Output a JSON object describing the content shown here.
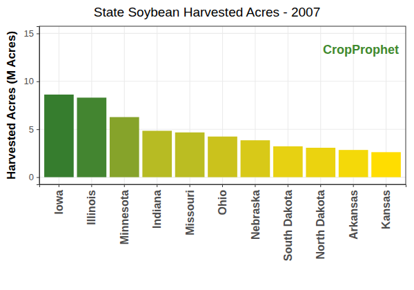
{
  "chart_data": {
    "type": "bar",
    "title": "State Soybean Harvested Acres - 2007",
    "y_label": "Harvested Acres (M Acres)",
    "annotations": [
      "CropProphet"
    ],
    "categories": [
      "Iowa",
      "Illinois",
      "Minnesota",
      "Indiana",
      "Missouri",
      "Ohio",
      "Nebraska",
      "South Dakota",
      "North Dakota",
      "Arkansas",
      "Kansas"
    ],
    "values": [
      8.62,
      8.3,
      6.27,
      4.84,
      4.67,
      4.24,
      3.85,
      3.22,
      3.07,
      2.84,
      2.61
    ],
    "colors": [
      "#367d2e",
      "#438530",
      "#86a32a",
      "#b7bb23",
      "#bbbd22",
      "#cbc21c",
      "#d8c918",
      "#e7d112",
      "#ebd30f",
      "#f4d909",
      "#ffdd00"
    ],
    "ylim": [
      -0.75,
      15.75
    ],
    "yticks": [
      0,
      5,
      10,
      15
    ],
    "grid": true
  }
}
